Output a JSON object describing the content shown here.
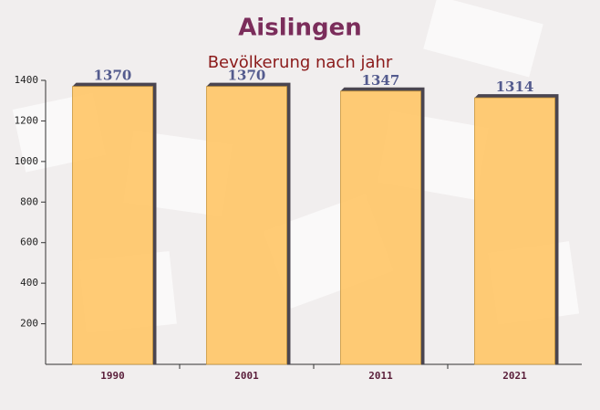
{
  "chart_data": {
    "type": "bar",
    "title": "Aislingen",
    "subtitle": "Bevölkerung nach jahr",
    "categories": [
      "1990",
      "2001",
      "2011",
      "2021"
    ],
    "values": [
      1370,
      1370,
      1347,
      1314
    ],
    "color": "#ffc566",
    "ylim": [
      0,
      1400
    ],
    "yticks": [
      200,
      400,
      600,
      800,
      1000,
      1200,
      1400
    ]
  }
}
